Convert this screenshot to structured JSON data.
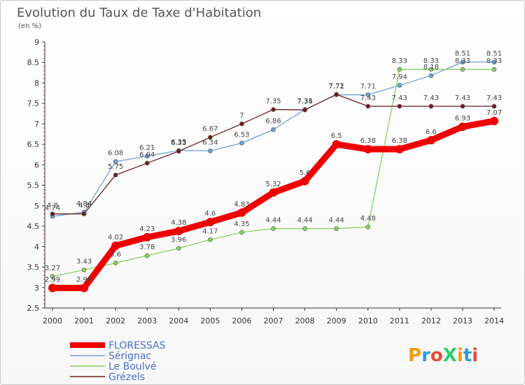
{
  "chart_data": {
    "type": "line",
    "title": "Evolution du Taux de Taxe d'Habitation",
    "subtitle": "(en %)",
    "x": [
      "2000",
      "2001",
      "2002",
      "2003",
      "2004",
      "2005",
      "2006",
      "2007",
      "2008",
      "2009",
      "2010",
      "2011",
      "2012",
      "2013",
      "2014"
    ],
    "yticks": [
      "2.5",
      "3",
      "3.5",
      "4",
      "4.5",
      "5",
      "5.5",
      "6",
      "6.5",
      "7",
      "7.5",
      "8",
      "8.5",
      "9"
    ],
    "ylim": [
      2.5,
      9
    ],
    "grid": false,
    "legend_position": "bottom-left",
    "series": [
      {
        "name": "FLORESSAS",
        "color": "#ee0000",
        "values": [
          2.99,
          2.99,
          4.02,
          4.23,
          4.38,
          4.6,
          4.83,
          5.32,
          5.6,
          6.5,
          6.38,
          6.38,
          6.6,
          6.93,
          7.07
        ],
        "labels": [
          "2.99",
          "2.99",
          "4.02",
          "4.23",
          "4.38",
          "4.6",
          "4.83",
          "5.32",
          "5.6",
          "6.5",
          "6.38",
          "6.38",
          "6.6",
          "6.93",
          "7.07"
        ]
      },
      {
        "name": "Sérignac",
        "color": "#6ea2d6",
        "values": [
          4.74,
          4.84,
          6.08,
          6.21,
          6.35,
          6.34,
          6.53,
          6.86,
          7.35,
          7.71,
          7.71,
          7.94,
          8.18,
          8.51,
          8.51
        ],
        "labels": [
          "4.74",
          "4.84",
          "6.08",
          "6.21",
          "6.35",
          "6.34",
          "6.53",
          "6.86",
          "7.35",
          "7.71",
          "7.71",
          "7.94",
          "8.18",
          "8.51",
          "8.51"
        ]
      },
      {
        "name": "Le Boulvé",
        "color": "#88d060",
        "values": [
          3.27,
          3.43,
          3.6,
          3.78,
          3.96,
          4.17,
          4.35,
          4.44,
          4.44,
          4.44,
          4.48,
          8.33,
          8.33,
          8.33,
          8.33
        ],
        "labels": [
          "3.27",
          "3.43",
          "3.6",
          "3.78",
          "3.96",
          "4.17",
          "4.35",
          "4.44",
          "4.44",
          "4.44",
          "4.48",
          "8.33",
          "8.33",
          "8.33",
          "8.33"
        ]
      },
      {
        "name": "Grézels",
        "color": "#6b1f1f",
        "values": [
          4.8,
          4.8,
          5.75,
          6.04,
          6.33,
          6.67,
          7,
          7.35,
          7.34,
          7.72,
          7.43,
          7.43,
          7.43,
          7.43,
          7.43
        ],
        "labels": [
          "4.8",
          "4.8",
          "5.75",
          "6.04",
          "6.33",
          "6.67",
          "7",
          "7.35",
          "7.34",
          "7.72",
          "7.43",
          "7.43",
          "7.43",
          "7.43",
          "7.43"
        ]
      }
    ]
  },
  "logo": {
    "text": "ProXiti",
    "colors": [
      "#f39c12",
      "#3498db",
      "#e74c3c",
      "#2ecc71"
    ]
  }
}
